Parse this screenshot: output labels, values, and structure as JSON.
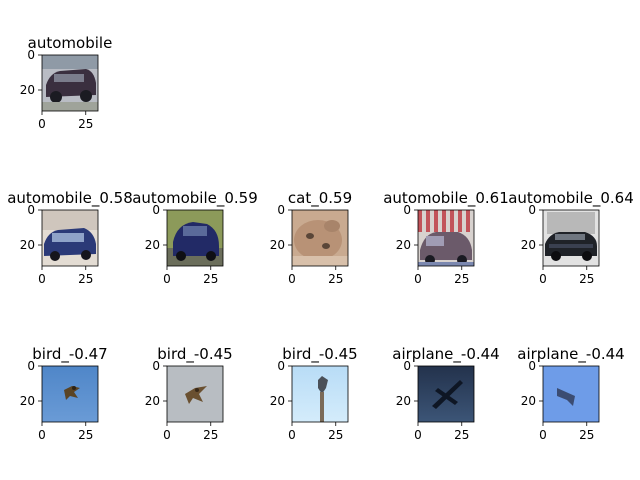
{
  "chart_data": {
    "type": "image_grid",
    "axes_ticks": {
      "x": [
        0,
        25
      ],
      "y": [
        0,
        20
      ],
      "xlim": [
        0,
        32
      ],
      "ylim": [
        32,
        0
      ]
    },
    "rows": [
      {
        "panels": [
          {
            "title": "automobile",
            "thumb": "car-dark-sedan"
          }
        ]
      },
      {
        "panels": [
          {
            "title": "automobile_0.58",
            "thumb": "car-blue-hatch"
          },
          {
            "title": "automobile_0.59",
            "thumb": "car-blue-compact"
          },
          {
            "title": "cat_0.59",
            "thumb": "cat-face"
          },
          {
            "title": "automobile_0.61",
            "thumb": "car-striped-awning"
          },
          {
            "title": "automobile_0.64",
            "thumb": "car-dark-garage"
          }
        ]
      },
      {
        "panels": [
          {
            "title": "bird_-0.47",
            "thumb": "bird-on-blue"
          },
          {
            "title": "bird_-0.45",
            "thumb": "bird-on-grey"
          },
          {
            "title": "bird_-0.45",
            "thumb": "bird-on-lightblue"
          },
          {
            "title": "airplane_-0.44",
            "thumb": "plane-dark-sky"
          },
          {
            "title": "airplane_-0.44",
            "thumb": "plane-blue-sky"
          }
        ]
      }
    ]
  }
}
